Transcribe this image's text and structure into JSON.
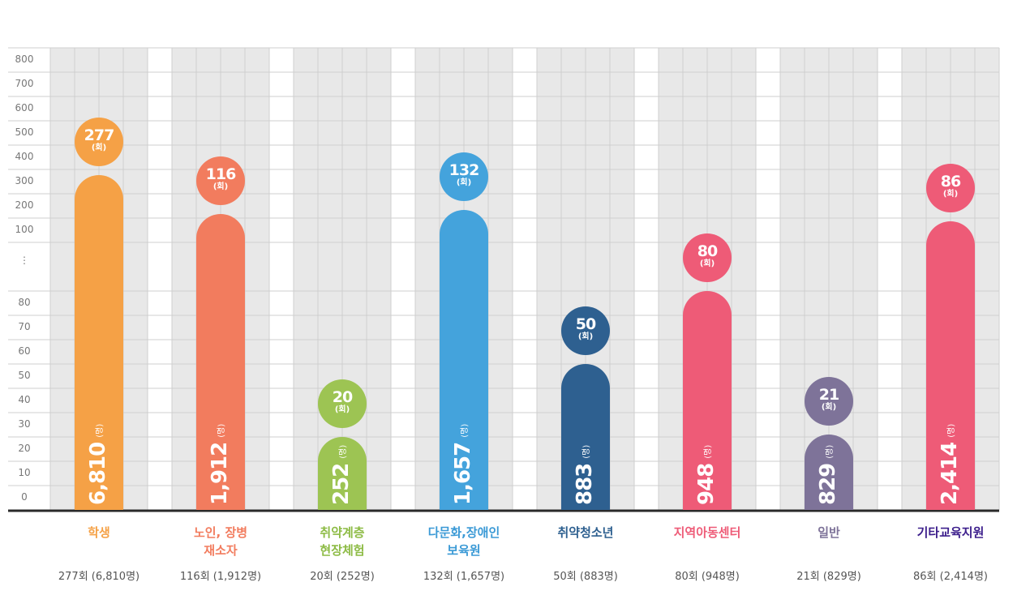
{
  "chart_data": {
    "type": "bar",
    "title": "",
    "xlabel": "",
    "ylabel": "",
    "y_ticks_upper": [
      "800",
      "700",
      "600",
      "500",
      "400",
      "300",
      "200",
      "100"
    ],
    "y_break": "⋮",
    "y_ticks_lower": [
      "80",
      "70",
      "60",
      "50",
      "40",
      "30",
      "20",
      "10",
      "0"
    ],
    "ylim_upper": [
      100,
      800
    ],
    "ylim_lower": [
      0,
      80
    ],
    "grid": true,
    "count_unit": "(회)",
    "people_unit": "(명)",
    "categories": [
      {
        "label": "학생",
        "count": 277,
        "count_label": "277",
        "people": "6,810",
        "summary": "277회 (6,810명)",
        "color": "#F5A146",
        "text_color": "#F5A146"
      },
      {
        "label": "노인, 장병\n재소자",
        "count": 116,
        "count_label": "116",
        "people": "1,912",
        "summary": "116회 (1,912명)",
        "color": "#F27C5E",
        "text_color": "#F27C5E"
      },
      {
        "label": "취약계층\n현장체험",
        "count": 20,
        "count_label": "20",
        "people": "252",
        "summary": "20회 (252명)",
        "color": "#9DC453",
        "text_color": "#8DBB45"
      },
      {
        "label": "다문화,장애인\n보육원",
        "count": 132,
        "count_label": "132",
        "people": "1,657",
        "summary": "132회 (1,657명)",
        "color": "#44A3DC",
        "text_color": "#3B9AD6"
      },
      {
        "label": "취약청소년",
        "count": 50,
        "count_label": "50",
        "people": "883",
        "summary": "50회 (883명)",
        "color": "#2E6090",
        "text_color": "#2E6090"
      },
      {
        "label": "지역아동센터",
        "count": 80,
        "count_label": "80",
        "people": "948",
        "summary": "80회 (948명)",
        "color": "#EE5B77",
        "text_color": "#EE5B77"
      },
      {
        "label": "일반",
        "count": 21,
        "count_label": "21",
        "people": "829",
        "summary": "21회 (829명)",
        "color": "#7E7399",
        "text_color": "#7E7399"
      },
      {
        "label": "기타교육지원",
        "count": 86,
        "count_label": "86",
        "people": "2,414",
        "summary": "86회 (2,414명)",
        "color": "#EE5B77",
        "text_color": "#3C1E8C"
      }
    ]
  }
}
